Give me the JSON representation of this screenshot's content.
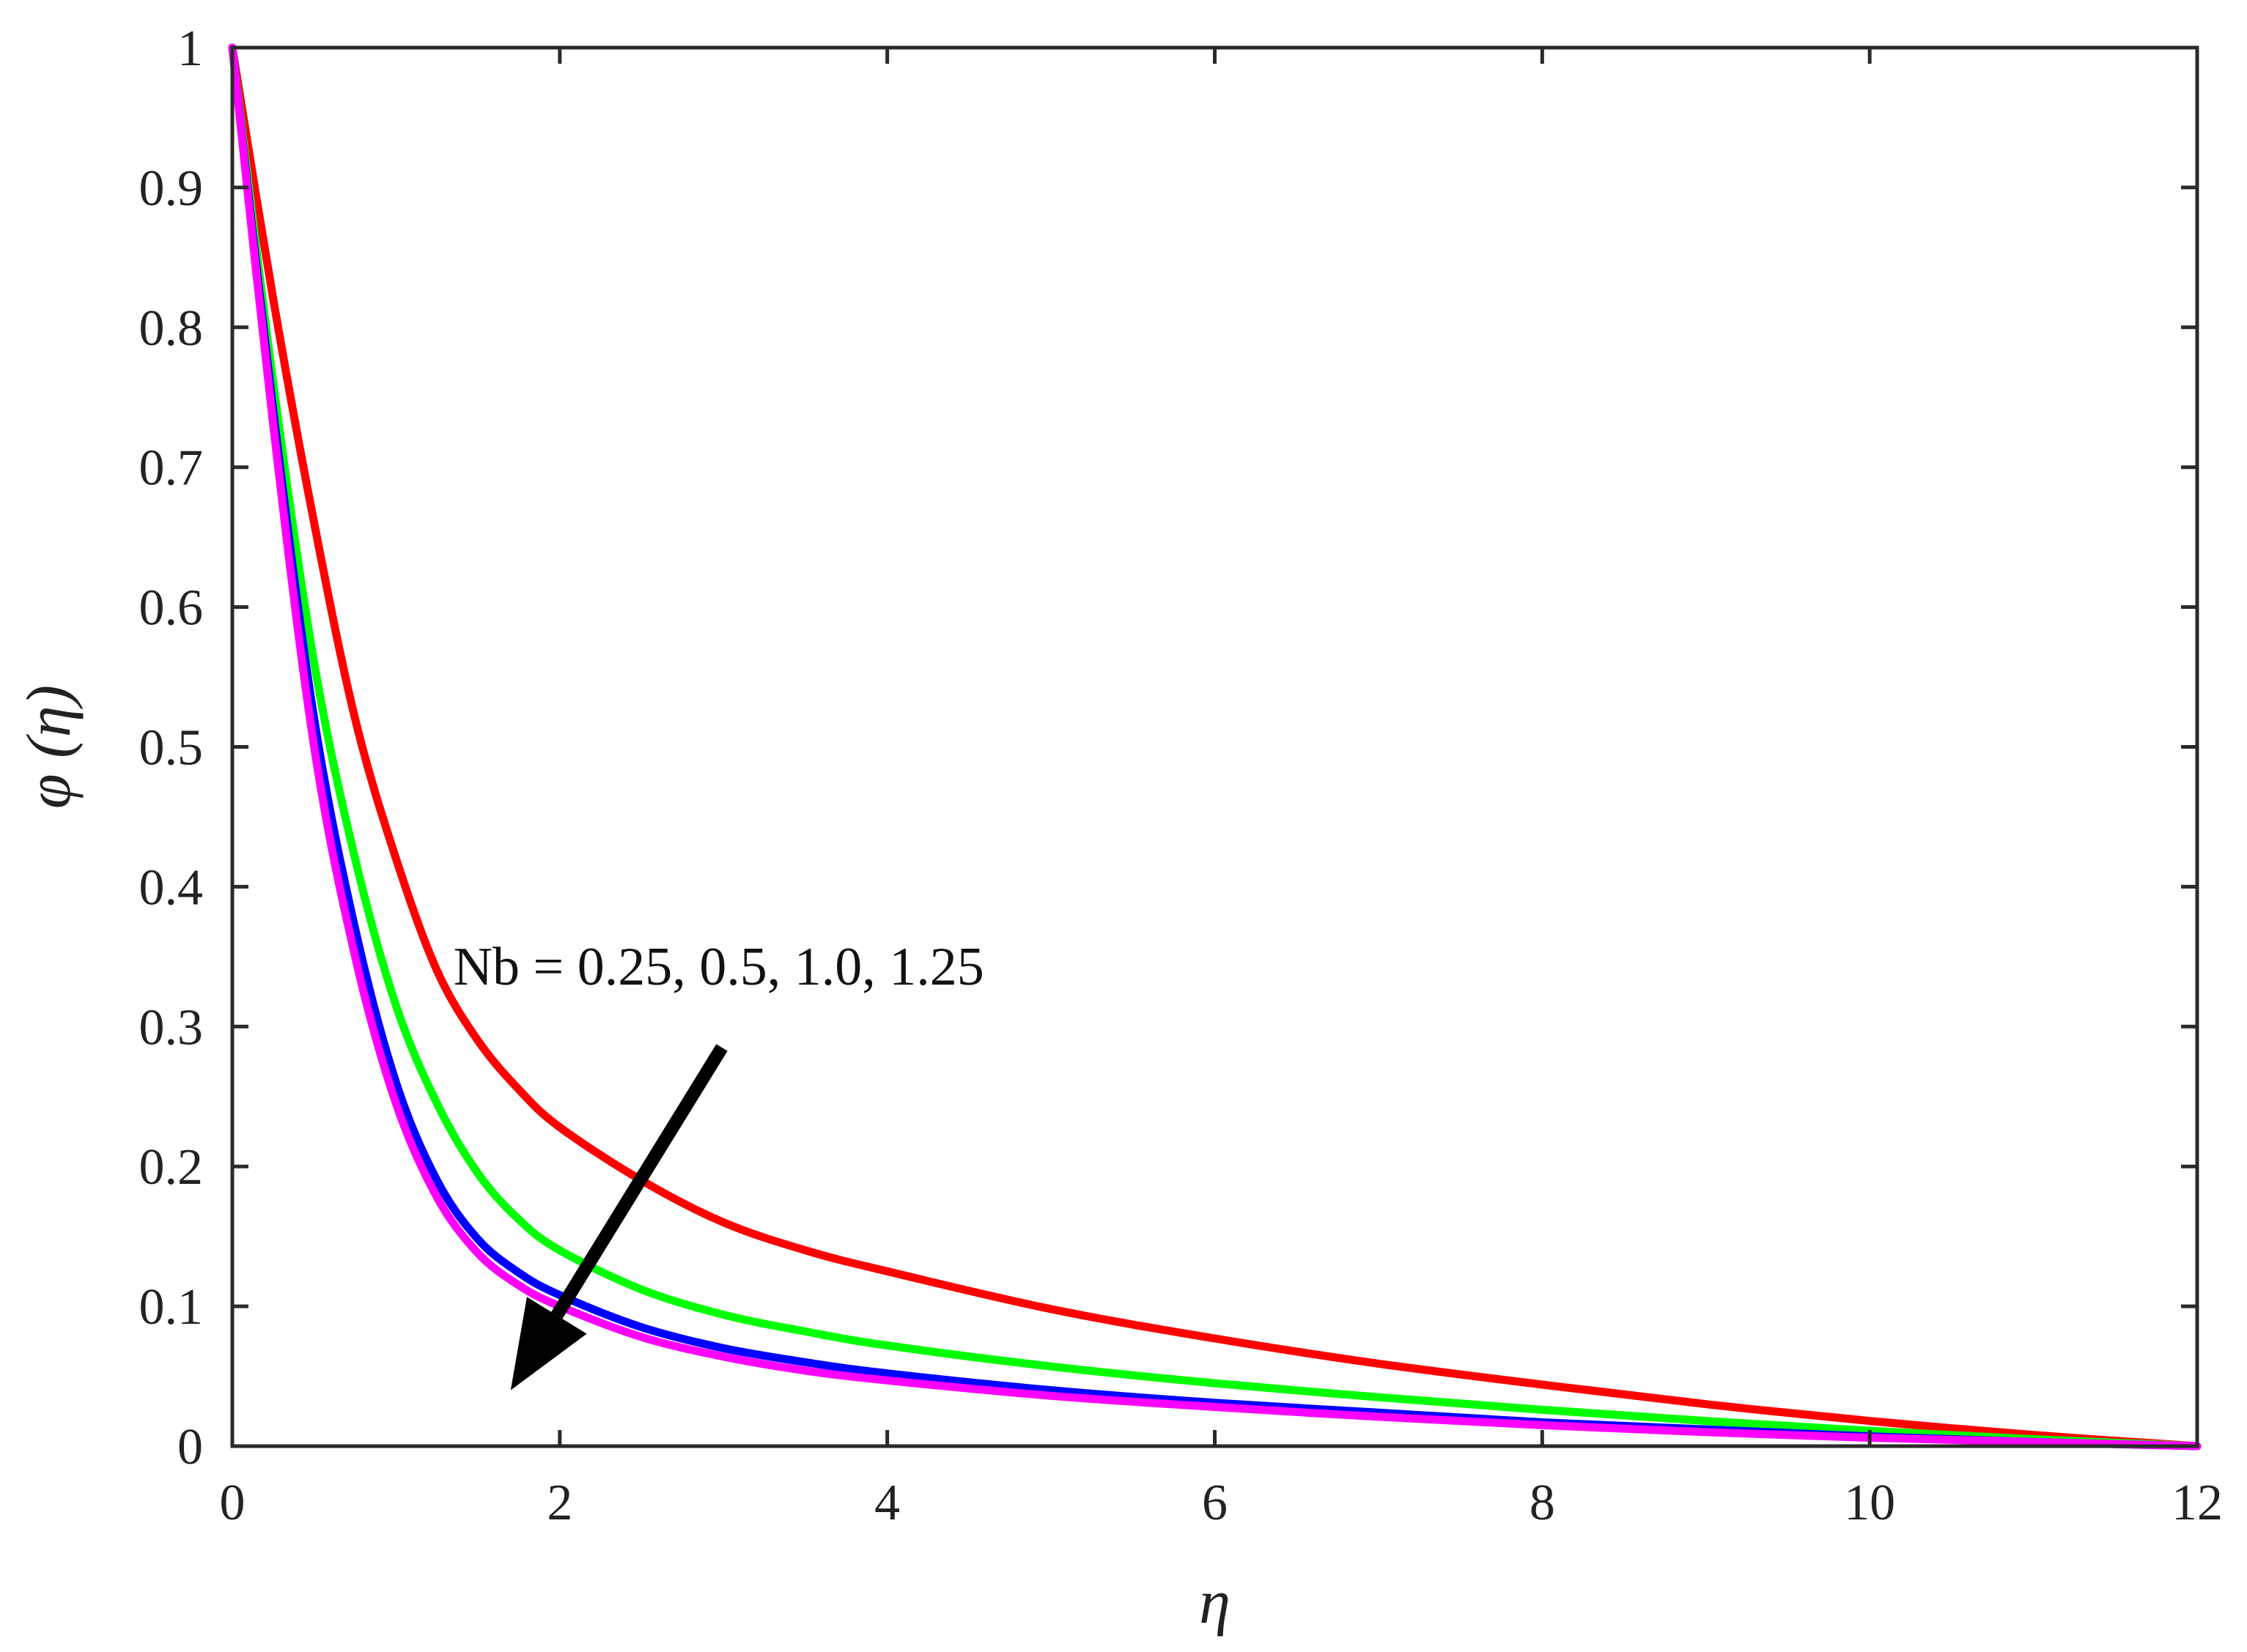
{
  "chart_data": {
    "type": "line",
    "title": "",
    "xlabel": "η",
    "ylabel": "φ (η)",
    "xlim": [
      0,
      12
    ],
    "ylim": [
      0,
      1
    ],
    "xticks": [
      "0",
      "2",
      "4",
      "6",
      "8",
      "10",
      "12"
    ],
    "yticks": [
      "0",
      "0.1",
      "0.2",
      "0.3",
      "0.4",
      "0.5",
      "0.6",
      "0.7",
      "0.8",
      "0.9",
      "1"
    ],
    "grid": false,
    "annotation": "Nb = 0.25, 0.5, 1.0, 1.25",
    "x": [
      0,
      0.25,
      0.5,
      0.75,
      1,
      1.25,
      1.5,
      1.75,
      2,
      2.5,
      3,
      3.5,
      4,
      5,
      6,
      7,
      8,
      9,
      10,
      11,
      12
    ],
    "series": [
      {
        "color": "#ff0000",
        "values": [
          1.0,
          0.82,
          0.66,
          0.52,
          0.42,
          0.34,
          0.29,
          0.255,
          0.228,
          0.19,
          0.16,
          0.14,
          0.125,
          0.098,
          0.077,
          0.059,
          0.044,
          0.03,
          0.018,
          0.008,
          0.0
        ]
      },
      {
        "color": "#00ff00",
        "values": [
          1.0,
          0.76,
          0.56,
          0.42,
          0.315,
          0.245,
          0.195,
          0.162,
          0.14,
          0.112,
          0.094,
          0.082,
          0.072,
          0.057,
          0.045,
          0.035,
          0.026,
          0.018,
          0.011,
          0.005,
          0.0
        ]
      },
      {
        "color": "#0000ff",
        "values": [
          1.0,
          0.74,
          0.52,
          0.37,
          0.26,
          0.19,
          0.148,
          0.124,
          0.108,
          0.085,
          0.07,
          0.06,
          0.052,
          0.04,
          0.031,
          0.024,
          0.017,
          0.012,
          0.007,
          0.003,
          0.0
        ]
      },
      {
        "color": "#ff00ff",
        "values": [
          1.0,
          0.73,
          0.5,
          0.35,
          0.245,
          0.178,
          0.138,
          0.115,
          0.1,
          0.078,
          0.064,
          0.054,
          0.047,
          0.036,
          0.028,
          0.021,
          0.015,
          0.01,
          0.006,
          0.003,
          0.0
        ]
      }
    ],
    "arrow": {
      "from": [
        2.99,
        0.285
      ],
      "to": [
        1.7,
        0.04
      ]
    }
  }
}
